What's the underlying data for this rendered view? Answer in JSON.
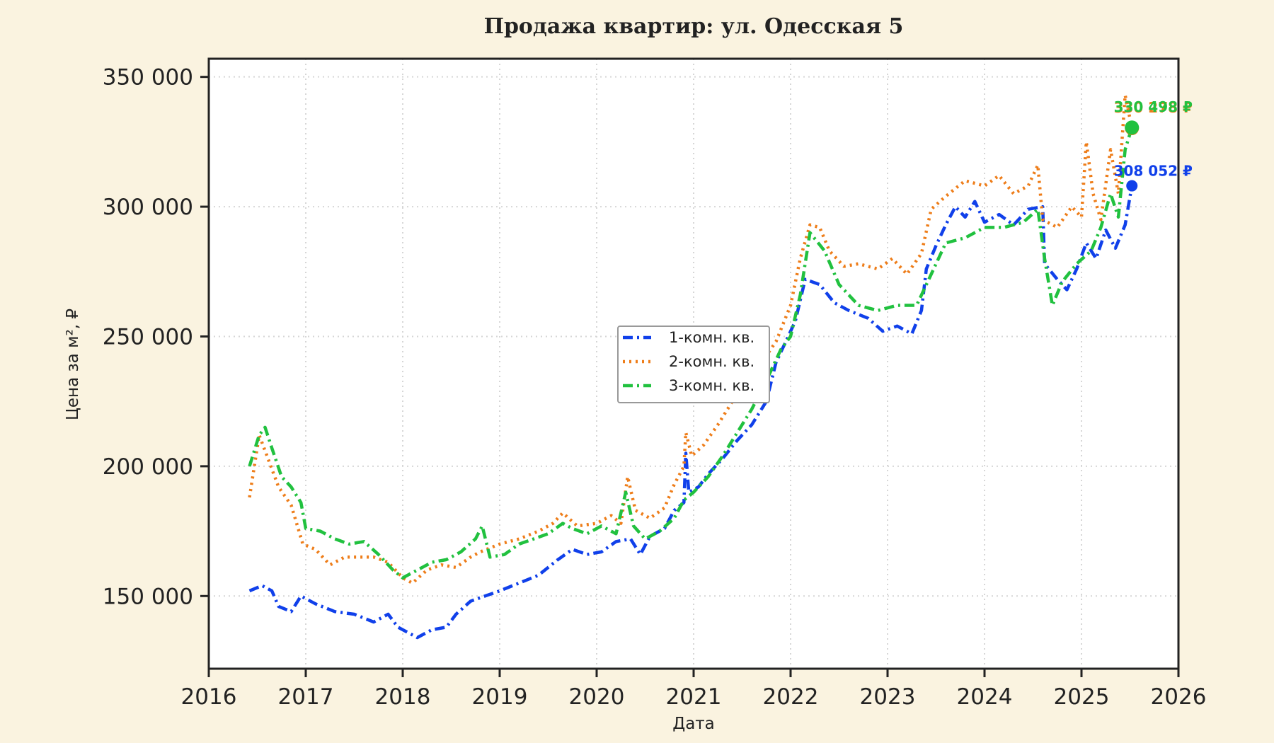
{
  "chart_data": {
    "type": "line",
    "title": "Продажа квартир: ул. Одесская 5",
    "xlabel": "Дата",
    "ylabel": "Цена за м², ₽",
    "xlim": [
      2016,
      2026
    ],
    "ylim": [
      122000,
      357000
    ],
    "x_ticks": [
      "2016",
      "2017",
      "2018",
      "2019",
      "2020",
      "2021",
      "2022",
      "2023",
      "2024",
      "2025",
      "2026"
    ],
    "y_ticks": [
      "150 000",
      "200 000",
      "250 000",
      "300 000",
      "350 000"
    ],
    "y_tick_values": [
      150000,
      200000,
      250000,
      300000,
      350000
    ],
    "grid": true,
    "legend_position": "center",
    "series": [
      {
        "name": "1-комн. кв.",
        "color": "#1040ea",
        "dash": "dashdot",
        "end_label": "308 052 ₽",
        "end_value": 308052,
        "points": [
          [
            2016.42,
            152000
          ],
          [
            2016.55,
            154000
          ],
          [
            2016.65,
            152000
          ],
          [
            2016.72,
            146000
          ],
          [
            2016.85,
            144000
          ],
          [
            2016.95,
            150000
          ],
          [
            2017.1,
            147000
          ],
          [
            2017.3,
            144000
          ],
          [
            2017.5,
            143000
          ],
          [
            2017.7,
            140000
          ],
          [
            2017.85,
            143000
          ],
          [
            2017.95,
            138000
          ],
          [
            2018.15,
            134000
          ],
          [
            2018.3,
            137000
          ],
          [
            2018.45,
            138000
          ],
          [
            2018.55,
            143000
          ],
          [
            2018.7,
            148000
          ],
          [
            2018.85,
            150000
          ],
          [
            2019.0,
            152000
          ],
          [
            2019.2,
            155000
          ],
          [
            2019.4,
            158000
          ],
          [
            2019.5,
            161000
          ],
          [
            2019.6,
            164000
          ],
          [
            2019.75,
            168000
          ],
          [
            2019.9,
            166000
          ],
          [
            2020.05,
            167000
          ],
          [
            2020.2,
            171000
          ],
          [
            2020.35,
            172000
          ],
          [
            2020.45,
            166000
          ],
          [
            2020.55,
            173000
          ],
          [
            2020.7,
            176000
          ],
          [
            2020.8,
            183000
          ],
          [
            2020.9,
            186000
          ],
          [
            2020.92,
            205000
          ],
          [
            2020.95,
            190000
          ],
          [
            2021.05,
            192000
          ],
          [
            2021.15,
            197000
          ],
          [
            2021.3,
            203000
          ],
          [
            2021.45,
            210000
          ],
          [
            2021.6,
            216000
          ],
          [
            2021.75,
            225000
          ],
          [
            2021.85,
            240000
          ],
          [
            2021.95,
            248000
          ],
          [
            2022.05,
            256000
          ],
          [
            2022.15,
            272000
          ],
          [
            2022.3,
            270000
          ],
          [
            2022.45,
            263000
          ],
          [
            2022.6,
            260000
          ],
          [
            2022.8,
            257000
          ],
          [
            2022.95,
            252000
          ],
          [
            2023.1,
            254000
          ],
          [
            2023.25,
            251000
          ],
          [
            2023.35,
            260000
          ],
          [
            2023.4,
            276000
          ],
          [
            2023.5,
            285000
          ],
          [
            2023.6,
            293000
          ],
          [
            2023.7,
            300000
          ],
          [
            2023.8,
            296000
          ],
          [
            2023.9,
            302000
          ],
          [
            2024.0,
            294000
          ],
          [
            2024.15,
            297000
          ],
          [
            2024.3,
            293000
          ],
          [
            2024.45,
            299000
          ],
          [
            2024.6,
            300000
          ],
          [
            2024.62,
            278000
          ],
          [
            2024.75,
            272000
          ],
          [
            2024.85,
            268000
          ],
          [
            2024.95,
            276000
          ],
          [
            2025.05,
            286000
          ],
          [
            2025.15,
            280000
          ],
          [
            2025.25,
            291000
          ],
          [
            2025.35,
            284000
          ],
          [
            2025.45,
            293000
          ],
          [
            2025.52,
            308052
          ]
        ]
      },
      {
        "name": "2-комн. кв.",
        "color": "#ee7d19",
        "dash": "dotted",
        "end_label": "330 278 ₽",
        "end_value": 330278,
        "points": [
          [
            2016.42,
            188000
          ],
          [
            2016.52,
            212000
          ],
          [
            2016.6,
            204000
          ],
          [
            2016.72,
            192000
          ],
          [
            2016.85,
            185000
          ],
          [
            2016.97,
            170000
          ],
          [
            2017.1,
            168000
          ],
          [
            2017.25,
            162000
          ],
          [
            2017.4,
            165000
          ],
          [
            2017.55,
            165000
          ],
          [
            2017.7,
            165000
          ],
          [
            2017.85,
            163000
          ],
          [
            2018.0,
            157000
          ],
          [
            2018.1,
            155000
          ],
          [
            2018.25,
            160000
          ],
          [
            2018.4,
            162000
          ],
          [
            2018.55,
            161000
          ],
          [
            2018.7,
            165000
          ],
          [
            2018.8,
            167000
          ],
          [
            2019.0,
            170000
          ],
          [
            2019.2,
            172000
          ],
          [
            2019.4,
            175000
          ],
          [
            2019.55,
            178000
          ],
          [
            2019.65,
            182000
          ],
          [
            2019.8,
            177000
          ],
          [
            2020.0,
            178000
          ],
          [
            2020.15,
            181000
          ],
          [
            2020.25,
            178000
          ],
          [
            2020.32,
            196000
          ],
          [
            2020.4,
            183000
          ],
          [
            2020.55,
            180000
          ],
          [
            2020.7,
            184000
          ],
          [
            2020.8,
            193000
          ],
          [
            2020.9,
            200000
          ],
          [
            2020.92,
            213000
          ],
          [
            2020.98,
            204000
          ],
          [
            2021.1,
            208000
          ],
          [
            2021.25,
            216000
          ],
          [
            2021.4,
            225000
          ],
          [
            2021.55,
            233000
          ],
          [
            2021.7,
            240000
          ],
          [
            2021.85,
            248000
          ],
          [
            2022.0,
            262000
          ],
          [
            2022.1,
            280000
          ],
          [
            2022.2,
            293000
          ],
          [
            2022.3,
            292000
          ],
          [
            2022.4,
            283000
          ],
          [
            2022.55,
            277000
          ],
          [
            2022.7,
            278000
          ],
          [
            2022.9,
            276000
          ],
          [
            2023.05,
            280000
          ],
          [
            2023.2,
            274000
          ],
          [
            2023.35,
            282000
          ],
          [
            2023.45,
            299000
          ],
          [
            2023.6,
            304000
          ],
          [
            2023.8,
            310000
          ],
          [
            2024.0,
            308000
          ],
          [
            2024.15,
            312000
          ],
          [
            2024.3,
            305000
          ],
          [
            2024.45,
            308000
          ],
          [
            2024.55,
            316000
          ],
          [
            2024.6,
            295000
          ],
          [
            2024.75,
            292000
          ],
          [
            2024.9,
            300000
          ],
          [
            2025.0,
            296000
          ],
          [
            2025.05,
            325000
          ],
          [
            2025.12,
            305000
          ],
          [
            2025.2,
            295000
          ],
          [
            2025.3,
            322000
          ],
          [
            2025.38,
            305000
          ],
          [
            2025.45,
            343000
          ],
          [
            2025.52,
            330278
          ]
        ]
      },
      {
        "name": "3-комн. кв.",
        "color": "#21c13f",
        "dash": "dashdot",
        "end_label": "330 498 ₽",
        "end_value": 330498,
        "points": [
          [
            2016.42,
            200000
          ],
          [
            2016.52,
            212000
          ],
          [
            2016.58,
            215000
          ],
          [
            2016.65,
            207000
          ],
          [
            2016.75,
            196000
          ],
          [
            2016.85,
            192000
          ],
          [
            2016.95,
            186000
          ],
          [
            2017.0,
            176000
          ],
          [
            2017.15,
            175000
          ],
          [
            2017.3,
            172000
          ],
          [
            2017.45,
            170000
          ],
          [
            2017.6,
            171000
          ],
          [
            2017.75,
            166000
          ],
          [
            2017.9,
            160000
          ],
          [
            2018.0,
            157000
          ],
          [
            2018.15,
            160000
          ],
          [
            2018.3,
            163000
          ],
          [
            2018.45,
            164000
          ],
          [
            2018.6,
            167000
          ],
          [
            2018.75,
            172000
          ],
          [
            2018.82,
            177000
          ],
          [
            2018.9,
            165000
          ],
          [
            2019.05,
            166000
          ],
          [
            2019.2,
            170000
          ],
          [
            2019.35,
            172000
          ],
          [
            2019.5,
            174000
          ],
          [
            2019.65,
            178000
          ],
          [
            2019.75,
            176000
          ],
          [
            2019.9,
            174000
          ],
          [
            2020.05,
            177000
          ],
          [
            2020.2,
            174000
          ],
          [
            2020.3,
            190000
          ],
          [
            2020.38,
            177000
          ],
          [
            2020.5,
            172000
          ],
          [
            2020.65,
            175000
          ],
          [
            2020.8,
            180000
          ],
          [
            2020.9,
            187000
          ],
          [
            2021.0,
            190000
          ],
          [
            2021.15,
            196000
          ],
          [
            2021.3,
            204000
          ],
          [
            2021.45,
            213000
          ],
          [
            2021.6,
            222000
          ],
          [
            2021.75,
            233000
          ],
          [
            2021.9,
            245000
          ],
          [
            2022.0,
            250000
          ],
          [
            2022.1,
            266000
          ],
          [
            2022.2,
            290000
          ],
          [
            2022.35,
            283000
          ],
          [
            2022.5,
            270000
          ],
          [
            2022.7,
            262000
          ],
          [
            2022.9,
            260000
          ],
          [
            2023.1,
            262000
          ],
          [
            2023.3,
            262000
          ],
          [
            2023.45,
            274000
          ],
          [
            2023.6,
            286000
          ],
          [
            2023.8,
            288000
          ],
          [
            2024.0,
            292000
          ],
          [
            2024.2,
            292000
          ],
          [
            2024.4,
            294000
          ],
          [
            2024.55,
            299000
          ],
          [
            2024.62,
            280000
          ],
          [
            2024.7,
            262000
          ],
          [
            2024.8,
            271000
          ],
          [
            2024.95,
            278000
          ],
          [
            2025.1,
            283000
          ],
          [
            2025.2,
            292000
          ],
          [
            2025.3,
            305000
          ],
          [
            2025.38,
            296000
          ],
          [
            2025.45,
            322000
          ],
          [
            2025.52,
            330498
          ]
        ]
      }
    ]
  }
}
